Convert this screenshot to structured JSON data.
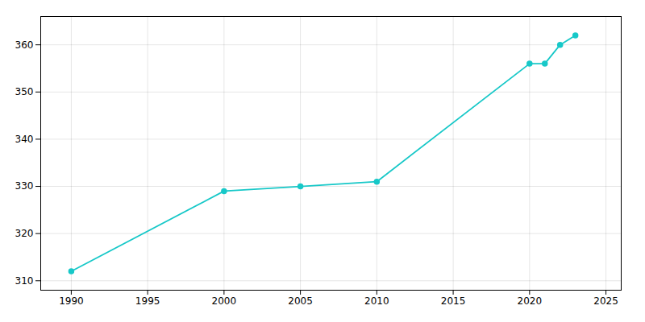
{
  "chart_data": {
    "type": "line",
    "x": [
      1990,
      2000,
      2005,
      2010,
      2020,
      2021,
      2022,
      2023
    ],
    "values": [
      312,
      329,
      330,
      331,
      356,
      356,
      360,
      362
    ],
    "color": "#17c8c8",
    "marker": "circle",
    "xlim": [
      1988,
      2026
    ],
    "ylim": [
      308,
      366
    ],
    "xticks": [
      1990,
      1995,
      2000,
      2005,
      2010,
      2015,
      2020,
      2025
    ],
    "yticks": [
      310,
      320,
      330,
      340,
      350,
      360
    ],
    "grid": true
  }
}
